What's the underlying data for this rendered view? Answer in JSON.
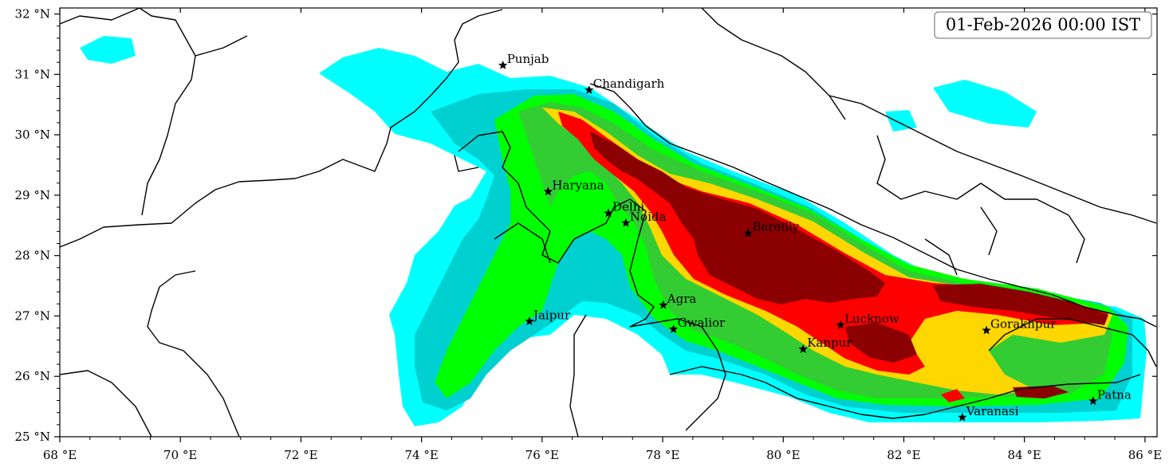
{
  "timestamp": "01-Feb-2026 00:00 IST",
  "axes": {
    "lon_range": [
      68,
      86.2
    ],
    "lat_range": [
      25,
      32.1
    ],
    "x_ticks": [
      {
        "value": 68,
        "label": "68 °E"
      },
      {
        "value": 70,
        "label": "70 °E"
      },
      {
        "value": 72,
        "label": "72 °E"
      },
      {
        "value": 74,
        "label": "74 °E"
      },
      {
        "value": 76,
        "label": "76 °E"
      },
      {
        "value": 78,
        "label": "78 °E"
      },
      {
        "value": 80,
        "label": "80 °E"
      },
      {
        "value": 82,
        "label": "82 °E"
      },
      {
        "value": 84,
        "label": "84 °E"
      },
      {
        "value": 86,
        "label": "86 °E"
      }
    ],
    "y_ticks": [
      {
        "value": 25,
        "label": "25 °N"
      },
      {
        "value": 26,
        "label": "26 °N"
      },
      {
        "value": 27,
        "label": "27 °N"
      },
      {
        "value": 28,
        "label": "28 °N"
      },
      {
        "value": 29,
        "label": "29 °N"
      },
      {
        "value": 30,
        "label": "30 °N"
      },
      {
        "value": 31,
        "label": "31 °N"
      },
      {
        "value": 32,
        "label": "32 °N"
      }
    ]
  },
  "cities": [
    {
      "name": "Punjab",
      "lon": 75.35,
      "lat": 31.15
    },
    {
      "name": "Chandigarh",
      "lon": 76.78,
      "lat": 30.74
    },
    {
      "name": "Haryana",
      "lon": 76.1,
      "lat": 29.06
    },
    {
      "name": "Delhi",
      "lon": 77.1,
      "lat": 28.7
    },
    {
      "name": "Noida",
      "lon": 77.39,
      "lat": 28.54
    },
    {
      "name": "Bareilly",
      "lon": 79.42,
      "lat": 28.37
    },
    {
      "name": "Agra",
      "lon": 78.01,
      "lat": 27.18
    },
    {
      "name": "Jaipur",
      "lon": 75.79,
      "lat": 26.91
    },
    {
      "name": "Gwalior",
      "lon": 78.18,
      "lat": 26.78
    },
    {
      "name": "Lucknow",
      "lon": 80.95,
      "lat": 26.85
    },
    {
      "name": "Kanpur",
      "lon": 80.33,
      "lat": 26.45
    },
    {
      "name": "Gorakhpur",
      "lon": 83.37,
      "lat": 26.76
    },
    {
      "name": "Varanasi",
      "lon": 82.97,
      "lat": 25.32
    },
    {
      "name": "Patna",
      "lon": 85.14,
      "lat": 25.59
    }
  ],
  "contour_levels": [
    {
      "level": 1,
      "color": "#00ffff"
    },
    {
      "level": 2,
      "color": "#00d0d0"
    },
    {
      "level": 3,
      "color": "#00ff00"
    },
    {
      "level": 4,
      "color": "#33cc33"
    },
    {
      "level": 5,
      "color": "#ffd700"
    },
    {
      "level": 6,
      "color": "#ff0000"
    },
    {
      "level": 7,
      "color": "#8b0000"
    }
  ]
}
